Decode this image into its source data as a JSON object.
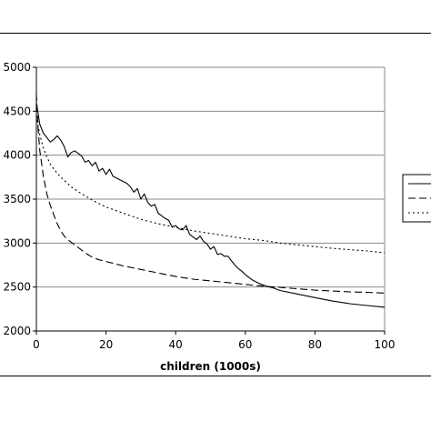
{
  "chart_data": {
    "type": "line",
    "xlabel": "children (1000s)",
    "ylabel": "",
    "title": "",
    "xlim": [
      0,
      100
    ],
    "ylim": [
      2000,
      5000
    ],
    "x_ticks": [
      0,
      20,
      40,
      60,
      80,
      100
    ],
    "y_ticks": [
      2000,
      2500,
      3000,
      3500,
      4000,
      4500,
      5000
    ],
    "grid": "horizontal",
    "legend_position": "right",
    "series": [
      {
        "style": "solid",
        "x": [
          0,
          1,
          2,
          3,
          4,
          5,
          6,
          7,
          8,
          9,
          10,
          11,
          12,
          13,
          14,
          15,
          16,
          17,
          18,
          19,
          20,
          21,
          22,
          23,
          24,
          25,
          26,
          27,
          28,
          29,
          30,
          31,
          32,
          33,
          34,
          35,
          36,
          37,
          38,
          39,
          40,
          41,
          42,
          43,
          44,
          45,
          46,
          47,
          48,
          49,
          50,
          51,
          52,
          53,
          54,
          55,
          56,
          57,
          58,
          59,
          60,
          62,
          64,
          66,
          68,
          70,
          75,
          80,
          85,
          90,
          95,
          100
        ],
        "values": [
          4600,
          4350,
          4250,
          4200,
          4150,
          4180,
          4220,
          4170,
          4100,
          3980,
          4030,
          4050,
          4020,
          3990,
          3920,
          3940,
          3880,
          3920,
          3820,
          3850,
          3780,
          3840,
          3760,
          3740,
          3720,
          3700,
          3680,
          3640,
          3580,
          3620,
          3500,
          3560,
          3460,
          3420,
          3440,
          3340,
          3310,
          3280,
          3260,
          3180,
          3200,
          3160,
          3150,
          3200,
          3100,
          3070,
          3040,
          3080,
          3020,
          2990,
          2930,
          2960,
          2870,
          2880,
          2850,
          2850,
          2800,
          2750,
          2710,
          2680,
          2640,
          2580,
          2540,
          2510,
          2490,
          2460,
          2420,
          2380,
          2340,
          2310,
          2290,
          2270
        ]
      },
      {
        "style": "dashed",
        "x": [
          0,
          0.5,
          1,
          2,
          3,
          4,
          5,
          6,
          7,
          8,
          9,
          10,
          12,
          14,
          16,
          18,
          20,
          25,
          30,
          35,
          40,
          45,
          50,
          55,
          60,
          65,
          70,
          75,
          80,
          85,
          90,
          95,
          100
        ],
        "values": [
          4700,
          4300,
          4050,
          3760,
          3560,
          3430,
          3320,
          3220,
          3140,
          3080,
          3040,
          3010,
          2950,
          2890,
          2840,
          2810,
          2790,
          2740,
          2700,
          2660,
          2620,
          2590,
          2570,
          2550,
          2530,
          2510,
          2495,
          2480,
          2465,
          2455,
          2445,
          2440,
          2430
        ]
      },
      {
        "style": "dotted",
        "x": [
          0,
          1,
          2,
          3,
          4,
          5,
          7,
          10,
          13,
          16,
          20,
          25,
          30,
          35,
          40,
          45,
          50,
          55,
          60,
          65,
          70,
          75,
          80,
          85,
          90,
          95,
          100
        ],
        "values": [
          4450,
          4230,
          4080,
          3980,
          3900,
          3840,
          3750,
          3640,
          3560,
          3490,
          3410,
          3340,
          3270,
          3220,
          3180,
          3140,
          3110,
          3080,
          3050,
          3030,
          3000,
          2980,
          2960,
          2940,
          2925,
          2910,
          2890
        ]
      }
    ]
  }
}
